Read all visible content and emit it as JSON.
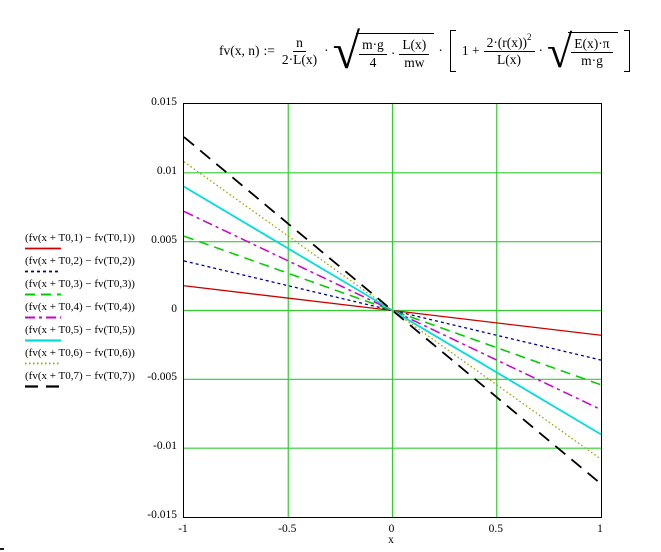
{
  "formula": {
    "lhs": "fv(x, n)",
    "assign": ":=",
    "frac_n": {
      "num": "n",
      "den": "2·L(x)"
    },
    "dot1": "·",
    "sqrt1": {
      "frac_mg": {
        "num": "m·g",
        "den": "4"
      },
      "dot": "·",
      "frac_lx": {
        "num": "L(x)",
        "den": "mw"
      }
    },
    "dot2": "·",
    "bracket": {
      "one_plus": "1 +",
      "frac_r": {
        "num_base": "2·(r(x))",
        "num_sup": "2",
        "den": "L(x)"
      },
      "dot": "·",
      "sqrt2": {
        "num": "E(x)·π",
        "den": "m·g"
      }
    }
  },
  "chart_data": {
    "type": "line",
    "title": "",
    "xlabel": "x",
    "ylabel": "",
    "xlim": [
      -1,
      1
    ],
    "ylim": [
      -0.015,
      0.015
    ],
    "grid": true,
    "grid_color": "#33cc33",
    "legend_position": "left",
    "xticks": [
      -1,
      -0.5,
      0,
      0.5,
      1
    ],
    "xtick_labels": [
      "-1",
      "-0.5",
      "0",
      "0.5",
      "1"
    ],
    "yticks": [
      0.015,
      0.01,
      0.005,
      0,
      -0.005,
      -0.01,
      -0.015
    ],
    "ytick_labels": [
      "0.015",
      "0.01",
      "0.005",
      "0",
      "-0.005",
      "-0.01",
      "-0.015"
    ],
    "series": [
      {
        "n": 1,
        "name": "(fv(x + T0,1) − fv(T0,1))",
        "color": "#cc0000",
        "dash": "",
        "width": 1.3,
        "x": [
          -1,
          1
        ],
        "y": [
          0.0018,
          -0.0018
        ]
      },
      {
        "n": 2,
        "name": "(fv(x + T0,2) − fv(T0,2))",
        "color": "#000099",
        "dash": "3,3",
        "width": 1.3,
        "x": [
          -1,
          1
        ],
        "y": [
          0.0036,
          -0.0036
        ]
      },
      {
        "n": 3,
        "name": "(fv(x + T0,3) − fv(T0,3))",
        "color": "#00cc00",
        "dash": "10,6",
        "width": 1.5,
        "x": [
          -1,
          1
        ],
        "y": [
          0.0054,
          -0.0054
        ]
      },
      {
        "n": 4,
        "name": "(fv(x + T0,4) − fv(T0,4))",
        "color": "#cc00cc",
        "dash": "10,4,3,4",
        "width": 1.5,
        "x": [
          -1,
          1
        ],
        "y": [
          0.0072,
          -0.0072
        ]
      },
      {
        "n": 5,
        "name": "(fv(x + T0,5) − fv(T0,5))",
        "color": "#00dddd",
        "dash": "",
        "width": 1.8,
        "x": [
          -1,
          1
        ],
        "y": [
          0.009,
          -0.009
        ]
      },
      {
        "n": 6,
        "name": "(fv(x + T0,6) − fv(T0,6))",
        "color": "#a0a000",
        "dash": "1.5,2.5",
        "width": 1.3,
        "x": [
          -1,
          1
        ],
        "y": [
          0.0108,
          -0.0108
        ]
      },
      {
        "n": 7,
        "name": "(fv(x + T0,7) − fv(T0,7))",
        "color": "#000000",
        "dash": "13,8",
        "width": 1.8,
        "x": [
          -1,
          1
        ],
        "y": [
          0.0126,
          -0.0126
        ]
      }
    ]
  }
}
